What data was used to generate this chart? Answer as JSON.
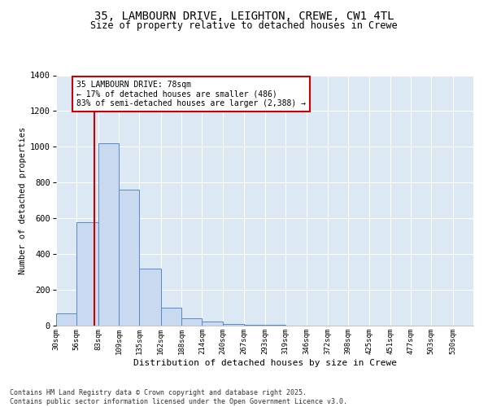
{
  "title_line1": "35, LAMBOURN DRIVE, LEIGHTON, CREWE, CW1 4TL",
  "title_line2": "Size of property relative to detached houses in Crewe",
  "xlabel": "Distribution of detached houses by size in Crewe",
  "ylabel": "Number of detached properties",
  "bin_edges": [
    30,
    56,
    83,
    109,
    135,
    162,
    188,
    214,
    240,
    267,
    293,
    319,
    346,
    372,
    398,
    425,
    451,
    477,
    503,
    530,
    556
  ],
  "bar_heights": [
    70,
    580,
    1020,
    760,
    320,
    100,
    40,
    25,
    10,
    5,
    3,
    2,
    1,
    1,
    1,
    0,
    0,
    0,
    0,
    0
  ],
  "bar_color": "#c9d9f0",
  "bar_edge_color": "#5588cc",
  "vline_x": 78,
  "vline_color": "#cc0000",
  "annotation_text": "35 LAMBOURN DRIVE: 78sqm\n← 17% of detached houses are smaller (486)\n83% of semi-detached houses are larger (2,388) →",
  "annotation_box_facecolor": "#ffffff",
  "annotation_border_color": "#cc0000",
  "ylim": [
    0,
    1400
  ],
  "yticks": [
    0,
    200,
    400,
    600,
    800,
    1000,
    1200,
    1400
  ],
  "plot_bg_color": "#dde8f5",
  "fig_bg_color": "#ffffff",
  "grid_color": "#ffffff",
  "footer_text": "Contains HM Land Registry data © Crown copyright and database right 2025.\nContains public sector information licensed under the Open Government Licence v3.0.",
  "font_family": "DejaVu Sans Mono"
}
